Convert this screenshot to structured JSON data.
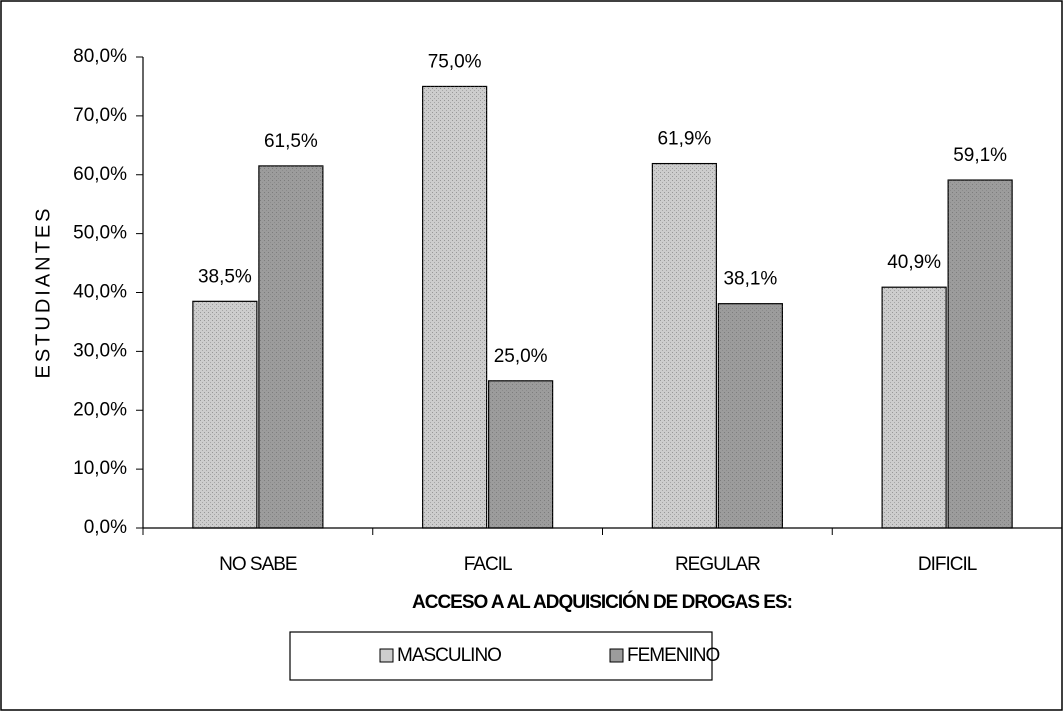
{
  "chart_data": {
    "type": "bar",
    "x_label": "ACCESO A AL ADQUISICIÓN DE DROGAS ES:",
    "y_label": "ESTUDIANTES",
    "categories": [
      "NO SABE",
      "FACIL",
      "REGULAR",
      "DIFICIL"
    ],
    "series": [
      {
        "name": "MASCULINO",
        "color": "#cdcdcd",
        "values": [
          38.5,
          75.0,
          61.9,
          40.9
        ],
        "value_labels": [
          "38,5%",
          "75,0%",
          "61,9%",
          "40,9%"
        ]
      },
      {
        "name": "FEMENINO",
        "color": "#9c9c9c",
        "values": [
          61.5,
          25.0,
          38.1,
          59.1
        ],
        "value_labels": [
          "61,5%",
          "25,0%",
          "38,1%",
          "59,1%"
        ]
      }
    ],
    "ylim": [
      0,
      80
    ],
    "yticks": [
      {
        "value": 0,
        "label": "0,0%"
      },
      {
        "value": 10,
        "label": "10,0%"
      },
      {
        "value": 20,
        "label": "20,0%"
      },
      {
        "value": 30,
        "label": "30,0%"
      },
      {
        "value": 40,
        "label": "40,0%"
      },
      {
        "value": 50,
        "label": "50,0%"
      },
      {
        "value": 60,
        "label": "60,0%"
      },
      {
        "value": 70,
        "label": "70,0%"
      },
      {
        "value": 80,
        "label": "80,0%"
      }
    ],
    "legend": "bottom"
  }
}
